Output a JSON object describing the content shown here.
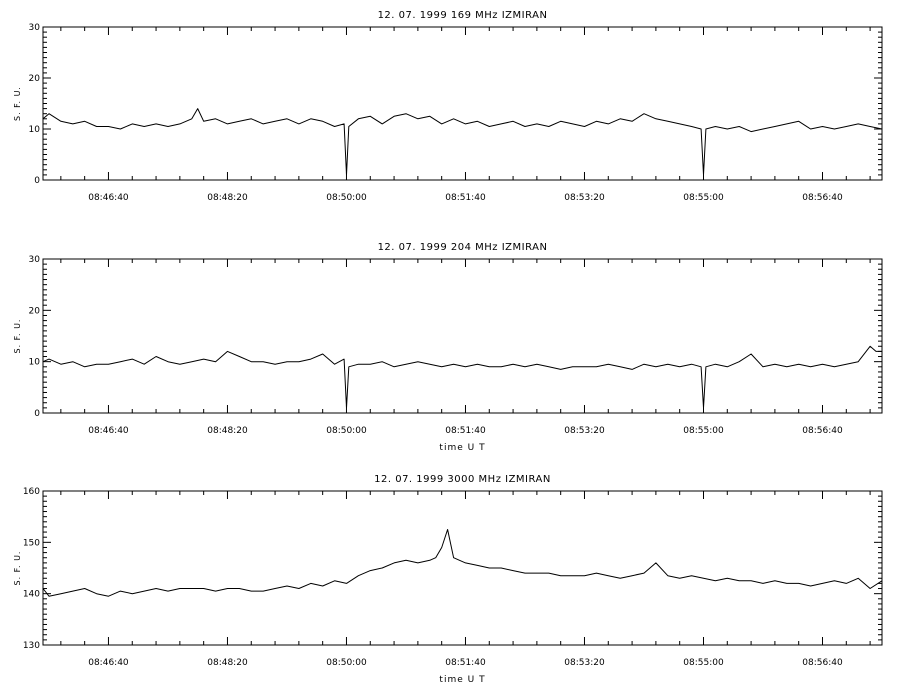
{
  "chart_data": [
    {
      "type": "line",
      "title": "12. 07. 1999    169 MHz    IZMIRAN",
      "ylabel": "S. F. U.",
      "xlabel": "",
      "ylim": [
        0,
        30
      ],
      "xlim": [
        "08:45:45",
        "08:57:30"
      ],
      "yticks": [
        0,
        10,
        20,
        30
      ],
      "ytick_labels": [
        "0",
        "10",
        "20",
        "30"
      ],
      "xticks": [
        "08:46:40",
        "08:48:20",
        "08:50:00",
        "08:51:40",
        "08:53:20",
        "08:55:00",
        "08:56:40"
      ],
      "grid": false,
      "series": [
        {
          "x": [
            "08:45:45",
            "08:45:50",
            "08:46:00",
            "08:46:10",
            "08:46:20",
            "08:46:30",
            "08:46:40",
            "08:46:50",
            "08:47:00",
            "08:47:10",
            "08:47:20",
            "08:47:30",
            "08:47:40",
            "08:47:50",
            "08:47:55",
            "08:48:00",
            "08:48:10",
            "08:48:20",
            "08:48:30",
            "08:48:40",
            "08:48:50",
            "08:49:00",
            "08:49:10",
            "08:49:20",
            "08:49:30",
            "08:49:40",
            "08:49:50",
            "08:49:58",
            "08:50:00",
            "08:50:02",
            "08:50:10",
            "08:50:20",
            "08:50:30",
            "08:50:40",
            "08:50:50",
            "08:51:00",
            "08:51:10",
            "08:51:20",
            "08:51:30",
            "08:51:40",
            "08:51:50",
            "08:52:00",
            "08:52:10",
            "08:52:20",
            "08:52:30",
            "08:52:40",
            "08:52:50",
            "08:53:00",
            "08:53:10",
            "08:53:20",
            "08:53:30",
            "08:53:40",
            "08:53:50",
            "08:54:00",
            "08:54:10",
            "08:54:20",
            "08:54:30",
            "08:54:40",
            "08:54:50",
            "08:54:58",
            "08:55:00",
            "08:55:02",
            "08:55:10",
            "08:55:20",
            "08:55:30",
            "08:55:40",
            "08:55:50",
            "08:56:00",
            "08:56:10",
            "08:56:20",
            "08:56:30",
            "08:56:40",
            "08:56:50",
            "08:57:00",
            "08:57:10",
            "08:57:20",
            "08:57:30"
          ],
          "values": [
            12,
            13,
            11.5,
            11,
            11.5,
            10.5,
            10.5,
            10,
            11,
            10.5,
            11,
            10.5,
            11,
            12,
            14,
            11.5,
            12,
            11,
            11.5,
            12,
            11,
            11.5,
            12,
            11,
            12,
            11.5,
            10.5,
            11,
            1,
            10.5,
            12,
            12.5,
            11,
            12.5,
            13,
            12,
            12.5,
            11,
            12,
            11,
            11.5,
            10.5,
            11,
            11.5,
            10.5,
            11,
            10.5,
            11.5,
            11,
            10.5,
            11.5,
            11,
            12,
            11.5,
            13,
            12,
            11.5,
            11,
            10.5,
            10,
            1,
            10,
            10.5,
            10,
            10.5,
            9.5,
            10,
            10.5,
            11,
            11.5,
            10,
            10.5,
            10,
            10.5,
            11,
            10.5,
            10
          ]
        }
      ]
    },
    {
      "type": "line",
      "title": "12. 07. 1999    204 MHz    IZMIRAN",
      "ylabel": "S. F. U.",
      "xlabel": "time  U T",
      "ylim": [
        0,
        30
      ],
      "xlim": [
        "08:45:45",
        "08:57:30"
      ],
      "yticks": [
        0,
        10,
        20,
        30
      ],
      "ytick_labels": [
        "0",
        "10",
        "20",
        "30"
      ],
      "xticks": [
        "08:46:40",
        "08:48:20",
        "08:50:00",
        "08:51:40",
        "08:53:20",
        "08:55:00",
        "08:56:40"
      ],
      "grid": false,
      "series": [
        {
          "x": [
            "08:45:45",
            "08:45:50",
            "08:46:00",
            "08:46:10",
            "08:46:20",
            "08:46:30",
            "08:46:40",
            "08:46:50",
            "08:47:00",
            "08:47:10",
            "08:47:20",
            "08:47:30",
            "08:47:40",
            "08:47:50",
            "08:48:00",
            "08:48:10",
            "08:48:20",
            "08:48:30",
            "08:48:40",
            "08:48:50",
            "08:49:00",
            "08:49:10",
            "08:49:20",
            "08:49:30",
            "08:49:40",
            "08:49:50",
            "08:49:58",
            "08:50:00",
            "08:50:02",
            "08:50:10",
            "08:50:20",
            "08:50:30",
            "08:50:40",
            "08:50:50",
            "08:51:00",
            "08:51:10",
            "08:51:20",
            "08:51:30",
            "08:51:40",
            "08:51:50",
            "08:52:00",
            "08:52:10",
            "08:52:20",
            "08:52:30",
            "08:52:40",
            "08:52:50",
            "08:53:00",
            "08:53:10",
            "08:53:20",
            "08:53:30",
            "08:53:40",
            "08:53:50",
            "08:54:00",
            "08:54:10",
            "08:54:20",
            "08:54:30",
            "08:54:40",
            "08:54:50",
            "08:54:58",
            "08:55:00",
            "08:55:02",
            "08:55:10",
            "08:55:20",
            "08:55:30",
            "08:55:40",
            "08:55:50",
            "08:56:00",
            "08:56:10",
            "08:56:20",
            "08:56:30",
            "08:56:40",
            "08:56:50",
            "08:57:00",
            "08:57:10",
            "08:57:20",
            "08:57:25",
            "08:57:30"
          ],
          "values": [
            10,
            10.5,
            9.5,
            10,
            9,
            9.5,
            9.5,
            10,
            10.5,
            9.5,
            11,
            10,
            9.5,
            10,
            10.5,
            10,
            12,
            11,
            10,
            10,
            9.5,
            10,
            10,
            10.5,
            11.5,
            9.5,
            10.5,
            1,
            9,
            9.5,
            9.5,
            10,
            9,
            9.5,
            10,
            9.5,
            9,
            9.5,
            9,
            9.5,
            9,
            9,
            9.5,
            9,
            9.5,
            9,
            8.5,
            9,
            9,
            9,
            9.5,
            9,
            8.5,
            9.5,
            9,
            9.5,
            9,
            9.5,
            9,
            1,
            9,
            9.5,
            9,
            10,
            11.5,
            9,
            9.5,
            9,
            9.5,
            9,
            9.5,
            9,
            9.5,
            10,
            13,
            12,
            12
          ]
        }
      ]
    },
    {
      "type": "line",
      "title": "12. 07. 1999    3000 MHz    IZMIRAN",
      "ylabel": "S. F. U.",
      "xlabel": "time  U T",
      "ylim": [
        130,
        160
      ],
      "xlim": [
        "08:45:45",
        "08:57:30"
      ],
      "yticks": [
        130,
        140,
        150,
        160
      ],
      "ytick_labels": [
        "130",
        "140",
        "150",
        "160"
      ],
      "xticks": [
        "08:46:40",
        "08:48:20",
        "08:50:00",
        "08:51:40",
        "08:53:20",
        "08:55:00",
        "08:56:40"
      ],
      "grid": false,
      "series": [
        {
          "x": [
            "08:45:45",
            "08:45:50",
            "08:46:00",
            "08:46:10",
            "08:46:20",
            "08:46:30",
            "08:46:40",
            "08:46:50",
            "08:47:00",
            "08:47:10",
            "08:47:20",
            "08:47:30",
            "08:47:40",
            "08:47:50",
            "08:48:00",
            "08:48:10",
            "08:48:20",
            "08:48:30",
            "08:48:40",
            "08:48:50",
            "08:49:00",
            "08:49:10",
            "08:49:20",
            "08:49:30",
            "08:49:40",
            "08:49:50",
            "08:50:00",
            "08:50:10",
            "08:50:20",
            "08:50:30",
            "08:50:40",
            "08:50:50",
            "08:51:00",
            "08:51:10",
            "08:51:15",
            "08:51:20",
            "08:51:25",
            "08:51:30",
            "08:51:35",
            "08:51:40",
            "08:51:50",
            "08:52:00",
            "08:52:10",
            "08:52:20",
            "08:52:30",
            "08:52:40",
            "08:52:50",
            "08:53:00",
            "08:53:10",
            "08:53:20",
            "08:53:30",
            "08:53:40",
            "08:53:50",
            "08:54:00",
            "08:54:10",
            "08:54:20",
            "08:54:30",
            "08:54:40",
            "08:54:50",
            "08:55:00",
            "08:55:10",
            "08:55:20",
            "08:55:30",
            "08:55:40",
            "08:55:50",
            "08:56:00",
            "08:56:10",
            "08:56:20",
            "08:56:30",
            "08:56:40",
            "08:56:50",
            "08:57:00",
            "08:57:10",
            "08:57:20",
            "08:57:30"
          ],
          "values": [
            141,
            139.5,
            140,
            140.5,
            141,
            140,
            139.5,
            140.5,
            140,
            140.5,
            141,
            140.5,
            141,
            141,
            141,
            140.5,
            141,
            141,
            140.5,
            140.5,
            141,
            141.5,
            141,
            142,
            141.5,
            142.5,
            142,
            143.5,
            144.5,
            145,
            146,
            146.5,
            146,
            146.5,
            147,
            149,
            152.5,
            147,
            146.5,
            146,
            145.5,
            145,
            145,
            144.5,
            144,
            144,
            144,
            143.5,
            143.5,
            143.5,
            144,
            143.5,
            143,
            143.5,
            144,
            146,
            143.5,
            143,
            143.5,
            143,
            142.5,
            143,
            142.5,
            142.5,
            142,
            142.5,
            142,
            142,
            141.5,
            142,
            142.5,
            142,
            143,
            141,
            142.5
          ]
        }
      ]
    }
  ]
}
